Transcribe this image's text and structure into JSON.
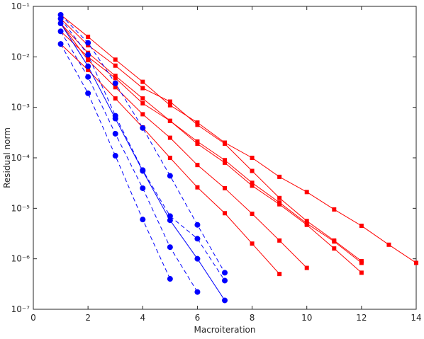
{
  "chart_data": {
    "type": "line",
    "xlabel": "Macroiteration",
    "ylabel": "Residual norm",
    "x": [
      1,
      2,
      3,
      4,
      5,
      6,
      7,
      8,
      9,
      10,
      11,
      12,
      13,
      14
    ],
    "xlim": [
      0,
      14
    ],
    "xticks": [
      0,
      2,
      4,
      6,
      8,
      10,
      12,
      14
    ],
    "ylim": [
      1e-07,
      0.1
    ],
    "yscale": "log",
    "yticks": [
      {
        "value": 1e-07,
        "label": "10⁻⁷"
      },
      {
        "value": 1e-06,
        "label": "10⁻⁶"
      },
      {
        "value": 1e-05,
        "label": "10⁻⁵"
      },
      {
        "value": 0.0001,
        "label": "10⁻⁴"
      },
      {
        "value": 0.001,
        "label": "10⁻³"
      },
      {
        "value": 0.01,
        "label": "10⁻²"
      },
      {
        "value": 0.1,
        "label": "10⁻¹"
      }
    ],
    "series": [
      {
        "color": "#ff0000",
        "marker": "square",
        "line_style": "solid",
        "values": [
          0.068,
          0.025,
          0.0088,
          0.0032,
          0.0011,
          0.0005,
          0.0002,
          0.0001,
          4.2e-05,
          2.1e-05,
          9.5e-06,
          4.5e-06,
          1.9e-06,
          8.3e-07
        ]
      },
      {
        "color": "#ff0000",
        "marker": "square",
        "line_style": "solid",
        "values": [
          0.057,
          0.017,
          0.0067,
          0.0024,
          0.0013,
          0.00045,
          0.00019,
          5.5e-05,
          1.6e-05,
          5.6e-06,
          2.3e-06,
          9e-07,
          null,
          null
        ]
      },
      {
        "color": "#ff0000",
        "marker": "square",
        "line_style": "solid",
        "values": [
          0.046,
          0.012,
          0.0042,
          0.0015,
          0.00054,
          0.00021,
          9e-05,
          3.2e-05,
          1.3e-05,
          5e-06,
          2.2e-06,
          8.3e-07,
          null,
          null
        ]
      },
      {
        "color": "#ff0000",
        "marker": "square",
        "line_style": "solid",
        "values": [
          0.032,
          0.01,
          0.0038,
          0.0012,
          0.00054,
          0.00019,
          8e-05,
          2.8e-05,
          1.2e-05,
          4.7e-06,
          1.6e-06,
          5.3e-07,
          null,
          null
        ]
      },
      {
        "color": "#ff0000",
        "marker": "square",
        "line_style": "solid",
        "values": [
          0.046,
          0.0086,
          0.0025,
          0.00073,
          0.00025,
          7.2e-05,
          2.5e-05,
          7.8e-06,
          2.3e-06,
          6.6e-07,
          null,
          null,
          null,
          null
        ]
      },
      {
        "color": "#ff0000",
        "marker": "square",
        "line_style": "solid",
        "values": [
          0.018,
          0.0055,
          0.0015,
          0.0004,
          0.0001,
          2.6e-05,
          8e-06,
          2e-06,
          5e-07,
          null,
          null,
          null,
          null,
          null
        ]
      },
      {
        "color": "#0000ff",
        "marker": "circle",
        "line_style": "dashed",
        "values": [
          0.068,
          0.019,
          0.003,
          0.00039,
          4.4e-05,
          4.7e-06,
          5.3e-07,
          null,
          null,
          null,
          null,
          null,
          null,
          null
        ]
      },
      {
        "color": "#0000ff",
        "marker": "circle",
        "line_style": "dashed",
        "values": [
          0.057,
          0.011,
          0.00068,
          5.7e-05,
          7e-06,
          2.5e-06,
          3.7e-07,
          null,
          null,
          null,
          null,
          null,
          null,
          null
        ]
      },
      {
        "color": "#0000ff",
        "marker": "circle",
        "line_style": "solid",
        "values": [
          0.046,
          0.0065,
          0.0006,
          5.5e-05,
          5.8e-06,
          1e-06,
          1.5e-07,
          null,
          null,
          null,
          null,
          null,
          null,
          null
        ]
      },
      {
        "color": "#0000ff",
        "marker": "circle",
        "line_style": "dashed",
        "values": [
          0.032,
          0.004,
          0.0003,
          2.5e-05,
          1.7e-06,
          2.2e-07,
          null,
          null,
          null,
          null,
          null,
          null,
          null,
          null
        ]
      },
      {
        "color": "#0000ff",
        "marker": "circle",
        "line_style": "dashed",
        "values": [
          0.018,
          0.0019,
          0.00011,
          6e-06,
          4e-07,
          null,
          null,
          null,
          null,
          null,
          null,
          null,
          null,
          null
        ]
      }
    ]
  }
}
